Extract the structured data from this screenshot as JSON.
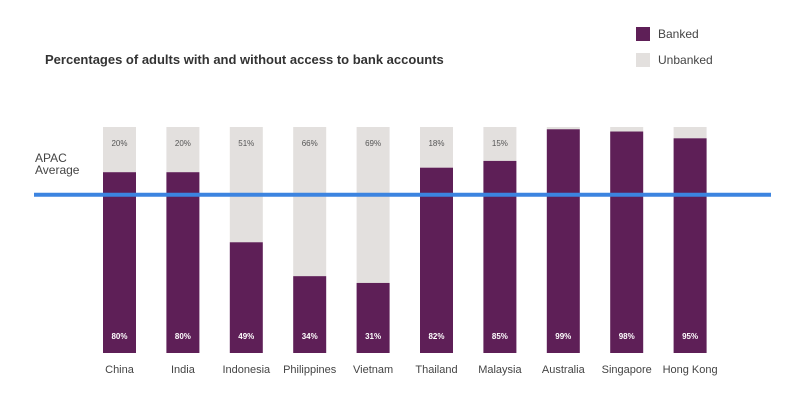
{
  "chart_data": {
    "type": "bar",
    "stacked": true,
    "title": "Percentages of adults with and without access to bank accounts",
    "categories": [
      "China",
      "India",
      "Indonesia",
      "Philippines",
      "Vietnam",
      "Thailand",
      "Malaysia",
      "Australia",
      "Singapore",
      "Hong Kong"
    ],
    "series": [
      {
        "name": "Banked",
        "color": "#5e1f57",
        "values": [
          80,
          80,
          49,
          34,
          31,
          82,
          85,
          99,
          98,
          95
        ],
        "labels": [
          "80%",
          "80%",
          "49%",
          "34%",
          "31%",
          "82%",
          "85%",
          "99%",
          "98%",
          "95%"
        ]
      },
      {
        "name": "Unbanked",
        "color": "#e3e0de",
        "values": [
          20,
          20,
          51,
          66,
          69,
          18,
          15,
          1,
          2,
          5
        ],
        "labels": [
          "20%",
          "20%",
          "51%",
          "66%",
          "69%",
          "18%",
          "15%",
          "",
          "",
          ""
        ]
      }
    ],
    "ylim": [
      0,
      100
    ],
    "grid": false,
    "legend": "top-right",
    "reference_line": {
      "label_line1": "APAC",
      "label_line2": "Average",
      "value": 70,
      "color": "#3c84e0"
    }
  }
}
